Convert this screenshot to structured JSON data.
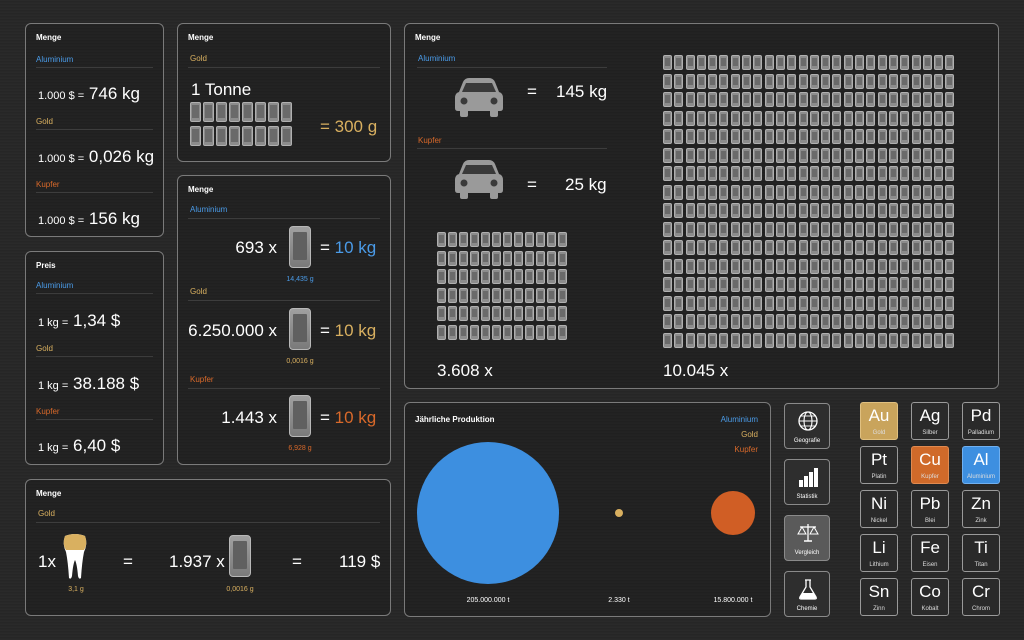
{
  "panel_price_amount": {
    "title": "Menge",
    "rows": [
      {
        "label": "Aluminium",
        "left": "1.000 $ =",
        "right": "746 kg"
      },
      {
        "label": "Gold",
        "left": "1.000 $ =",
        "right": "0,026 kg"
      },
      {
        "label": "Kupfer",
        "left": "1.000 $ =",
        "right": "156 kg"
      }
    ]
  },
  "panel_price": {
    "title": "Preis",
    "rows": [
      {
        "label": "Aluminium",
        "left": "1 kg =",
        "right": "1,34 $"
      },
      {
        "label": "Gold",
        "left": "1 kg =",
        "right": "38.188 $"
      },
      {
        "label": "Kupfer",
        "left": "1 kg =",
        "right": "6,40 $"
      }
    ]
  },
  "panel_gold_tonne": {
    "title": "Menge",
    "label": "Gold",
    "heading": "1 Tonne",
    "result": "= 300 g"
  },
  "panel_phones": {
    "title": "Menge",
    "rows": [
      {
        "label": "Aluminium",
        "count": "693 x",
        "weight": "14,435 g",
        "result_eq": "=",
        "result": "10 kg"
      },
      {
        "label": "Gold",
        "count": "6.250.000 x",
        "weight": "0,0016 g",
        "result_eq": "=",
        "result": "10 kg"
      },
      {
        "label": "Kupfer",
        "count": "1.443 x",
        "weight": "6,928 g",
        "result_eq": "=",
        "result": "10 kg"
      }
    ]
  },
  "panel_tooth": {
    "title": "Menge",
    "label": "Gold",
    "count": "1x",
    "tooth_weight": "3,1 g",
    "eq1": "=",
    "phones": "1.937 x",
    "phone_weight": "0,0016 g",
    "eq2": "=",
    "price": "119 $"
  },
  "panel_cars": {
    "title": "Menge",
    "rows": [
      {
        "label": "Aluminium",
        "eq": "=",
        "value": "145 kg"
      },
      {
        "label": "Kupfer",
        "eq": "=",
        "value": "25 kg"
      }
    ],
    "count_small": "3.608 x",
    "count_large": "10.045 x"
  },
  "panel_production": {
    "title": "Jährliche Produktion",
    "legend": [
      "Aluminium",
      "Gold",
      "Kupfer"
    ],
    "values": [
      "205.000.000 t",
      "2.330 t",
      "15.800.000 t"
    ]
  },
  "colors": {
    "aluminium": "#3d8fe0",
    "gold": "#d9b060",
    "kupfer": "#d9692a"
  },
  "nav": [
    {
      "label": "Geografie",
      "icon": "globe-icon"
    },
    {
      "label": "Statistik",
      "icon": "bar-chart-icon"
    },
    {
      "label": "Vergleich",
      "icon": "scale-icon",
      "active": true
    },
    {
      "label": "Chemie",
      "icon": "flask-icon"
    }
  ],
  "elements": [
    {
      "sym": "Au",
      "name": "Gold"
    },
    {
      "sym": "Ag",
      "name": "Silber"
    },
    {
      "sym": "Pd",
      "name": "Palladium"
    },
    {
      "sym": "Pt",
      "name": "Platin"
    },
    {
      "sym": "Cu",
      "name": "Kupfer"
    },
    {
      "sym": "Al",
      "name": "Aluminium"
    },
    {
      "sym": "Ni",
      "name": "Nickel"
    },
    {
      "sym": "Pb",
      "name": "Blei"
    },
    {
      "sym": "Zn",
      "name": "Zink"
    },
    {
      "sym": "Li",
      "name": "Lithium"
    },
    {
      "sym": "Fe",
      "name": "Eisen"
    },
    {
      "sym": "Ti",
      "name": "Titan"
    },
    {
      "sym": "Sn",
      "name": "Zinn"
    },
    {
      "sym": "Co",
      "name": "Kobalt"
    },
    {
      "sym": "Cr",
      "name": "Chrom"
    }
  ]
}
